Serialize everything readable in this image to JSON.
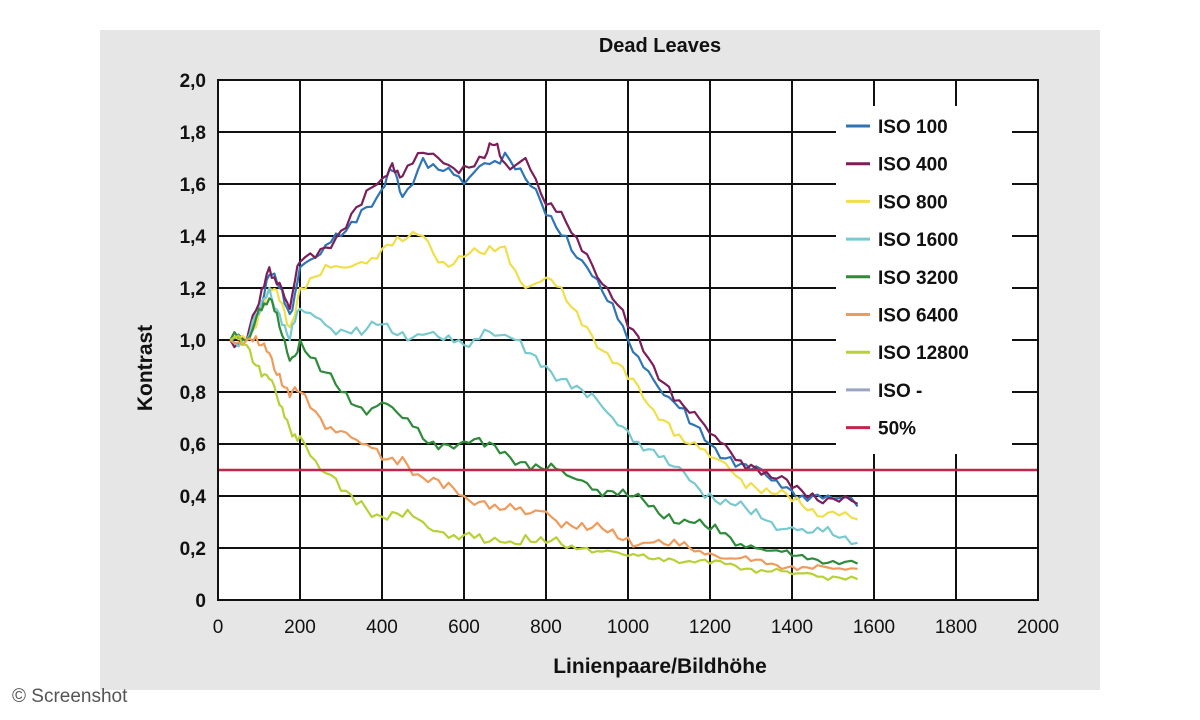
{
  "colors": {
    "background": "#e6e6e6",
    "plot_background": "#ffffff",
    "grid": "#111111",
    "iso_100": "#2f75b5",
    "iso_400": "#7a1f5a",
    "iso_800": "#f0de4a",
    "iso_1600": "#79c9ce",
    "iso_3200": "#2e8b3a",
    "iso_6400": "#ee9b5c",
    "iso_12800": "#b9d037",
    "iso_dash": "#9aa5c4",
    "line_50": "#c0254a"
  },
  "credit": "© Screenshot",
  "chart_data": {
    "type": "line",
    "title": "Dead Leaves",
    "xlabel": "Linienpaare/Bildhöhe",
    "ylabel": "Kontrast",
    "xlim": [
      0,
      2000
    ],
    "ylim": [
      0,
      2.0
    ],
    "grid": true,
    "legend_position": "top-right",
    "x_ticks": [
      0,
      200,
      400,
      600,
      800,
      1000,
      1200,
      1400,
      1600,
      1800,
      2000
    ],
    "x_tick_labels": [
      "0",
      "200",
      "400",
      "600",
      "800",
      "1000",
      "1200",
      "1400",
      "1600",
      "1800",
      "2000"
    ],
    "y_ticks": [
      0,
      0.2,
      0.4,
      0.6,
      0.8,
      1.0,
      1.2,
      1.4,
      1.6,
      1.8,
      2.0
    ],
    "y_tick_labels": [
      "0",
      "0,2",
      "0,4",
      "0,6",
      "0,8",
      "1,0",
      "1,2",
      "1,4",
      "1,6",
      "1,8",
      "2,0"
    ],
    "series": [
      {
        "name": "ISO 100",
        "color_key": "iso_100",
        "x": [
          30,
          70,
          100,
          125,
          150,
          175,
          200,
          250,
          300,
          350,
          400,
          425,
          450,
          500,
          550,
          600,
          650,
          700,
          750,
          800,
          850,
          900,
          950,
          1000,
          1050,
          1100,
          1150,
          1200,
          1250,
          1300,
          1350,
          1400,
          1450,
          1500,
          1560
        ],
        "y": [
          1.0,
          1.0,
          1.12,
          1.25,
          1.2,
          1.1,
          1.28,
          1.33,
          1.4,
          1.5,
          1.58,
          1.65,
          1.55,
          1.7,
          1.65,
          1.6,
          1.68,
          1.72,
          1.62,
          1.48,
          1.4,
          1.28,
          1.15,
          1.0,
          0.88,
          0.78,
          0.68,
          0.6,
          0.55,
          0.5,
          0.46,
          0.42,
          0.4,
          0.39,
          0.36
        ]
      },
      {
        "name": "ISO 400",
        "color_key": "iso_400",
        "x": [
          30,
          70,
          100,
          125,
          150,
          175,
          200,
          250,
          300,
          350,
          400,
          425,
          450,
          500,
          550,
          600,
          650,
          675,
          700,
          750,
          800,
          850,
          900,
          950,
          1000,
          1050,
          1100,
          1150,
          1200,
          1250,
          1300,
          1350,
          1400,
          1450,
          1500,
          1560
        ],
        "y": [
          1.0,
          1.0,
          1.14,
          1.28,
          1.22,
          1.12,
          1.3,
          1.35,
          1.42,
          1.52,
          1.62,
          1.68,
          1.63,
          1.72,
          1.68,
          1.67,
          1.7,
          1.75,
          1.68,
          1.7,
          1.52,
          1.45,
          1.33,
          1.2,
          1.05,
          0.93,
          0.82,
          0.72,
          0.64,
          0.57,
          0.52,
          0.47,
          0.43,
          0.41,
          0.39,
          0.37
        ]
      },
      {
        "name": "ISO 800",
        "color_key": "iso_800",
        "x": [
          30,
          70,
          100,
          125,
          150,
          175,
          200,
          250,
          300,
          350,
          400,
          450,
          500,
          550,
          600,
          650,
          700,
          750,
          800,
          850,
          900,
          950,
          1000,
          1050,
          1100,
          1150,
          1200,
          1250,
          1300,
          1350,
          1400,
          1450,
          1500,
          1560
        ],
        "y": [
          1.0,
          1.0,
          1.1,
          1.2,
          1.15,
          1.05,
          1.2,
          1.25,
          1.28,
          1.3,
          1.35,
          1.38,
          1.4,
          1.3,
          1.32,
          1.33,
          1.36,
          1.2,
          1.24,
          1.15,
          1.05,
          0.95,
          0.85,
          0.75,
          0.68,
          0.6,
          0.55,
          0.5,
          0.45,
          0.41,
          0.38,
          0.35,
          0.34,
          0.31
        ]
      },
      {
        "name": "ISO 1600",
        "color_key": "iso_1600",
        "x": [
          30,
          70,
          100,
          125,
          150,
          175,
          200,
          250,
          300,
          350,
          400,
          450,
          500,
          550,
          600,
          650,
          700,
          750,
          800,
          850,
          900,
          950,
          1000,
          1050,
          1100,
          1150,
          1200,
          1250,
          1300,
          1350,
          1400,
          1450,
          1500,
          1560
        ],
        "y": [
          1.0,
          1.0,
          1.1,
          1.2,
          1.1,
          1.0,
          1.12,
          1.08,
          1.04,
          1.02,
          1.06,
          1.03,
          1.02,
          1.0,
          0.98,
          1.04,
          1.02,
          0.95,
          0.9,
          0.85,
          0.78,
          0.72,
          0.65,
          0.58,
          0.52,
          0.46,
          0.41,
          0.37,
          0.33,
          0.3,
          0.28,
          0.26,
          0.25,
          0.22
        ]
      },
      {
        "name": "ISO 3200",
        "color_key": "iso_3200",
        "x": [
          30,
          70,
          100,
          125,
          150,
          175,
          200,
          250,
          300,
          350,
          400,
          450,
          500,
          550,
          600,
          650,
          700,
          750,
          800,
          850,
          900,
          950,
          1000,
          1050,
          1100,
          1150,
          1200,
          1250,
          1300,
          1350,
          1400,
          1450,
          1500,
          1560
        ],
        "y": [
          1.0,
          1.0,
          1.12,
          1.16,
          1.05,
          0.92,
          1.0,
          0.88,
          0.8,
          0.74,
          0.76,
          0.7,
          0.62,
          0.6,
          0.61,
          0.59,
          0.57,
          0.53,
          0.5,
          0.48,
          0.45,
          0.42,
          0.4,
          0.36,
          0.33,
          0.3,
          0.27,
          0.24,
          0.21,
          0.19,
          0.17,
          0.16,
          0.15,
          0.14
        ]
      },
      {
        "name": "ISO 6400",
        "color_key": "iso_6400",
        "x": [
          30,
          70,
          100,
          125,
          150,
          175,
          200,
          250,
          300,
          350,
          400,
          450,
          500,
          550,
          600,
          650,
          700,
          750,
          800,
          850,
          900,
          950,
          1000,
          1050,
          1100,
          1150,
          1200,
          1250,
          1300,
          1350,
          1400,
          1450,
          1500,
          1560
        ],
        "y": [
          1.0,
          1.0,
          0.98,
          0.95,
          0.87,
          0.78,
          0.8,
          0.7,
          0.65,
          0.6,
          0.54,
          0.55,
          0.47,
          0.43,
          0.4,
          0.38,
          0.35,
          0.33,
          0.34,
          0.3,
          0.27,
          0.26,
          0.24,
          0.22,
          0.21,
          0.2,
          0.18,
          0.16,
          0.15,
          0.14,
          0.13,
          0.12,
          0.12,
          0.12
        ]
      },
      {
        "name": "ISO 12800",
        "color_key": "iso_12800",
        "x": [
          30,
          70,
          100,
          125,
          150,
          175,
          200,
          250,
          300,
          350,
          400,
          450,
          500,
          550,
          600,
          650,
          700,
          750,
          800,
          850,
          900,
          950,
          1000,
          1050,
          1100,
          1150,
          1200,
          1250,
          1300,
          1350,
          1400,
          1450,
          1500,
          1560
        ],
        "y": [
          1.0,
          0.98,
          0.9,
          0.85,
          0.75,
          0.66,
          0.63,
          0.5,
          0.42,
          0.38,
          0.32,
          0.32,
          0.3,
          0.26,
          0.25,
          0.22,
          0.22,
          0.25,
          0.22,
          0.2,
          0.2,
          0.19,
          0.17,
          0.16,
          0.16,
          0.15,
          0.14,
          0.14,
          0.12,
          0.11,
          0.1,
          0.1,
          0.09,
          0.08
        ]
      },
      {
        "name": "ISO -",
        "color_key": "iso_dash",
        "x": [],
        "y": []
      },
      {
        "name": "50%",
        "color_key": "line_50",
        "x": [
          0,
          2000
        ],
        "y": [
          0.5,
          0.5
        ]
      }
    ]
  }
}
